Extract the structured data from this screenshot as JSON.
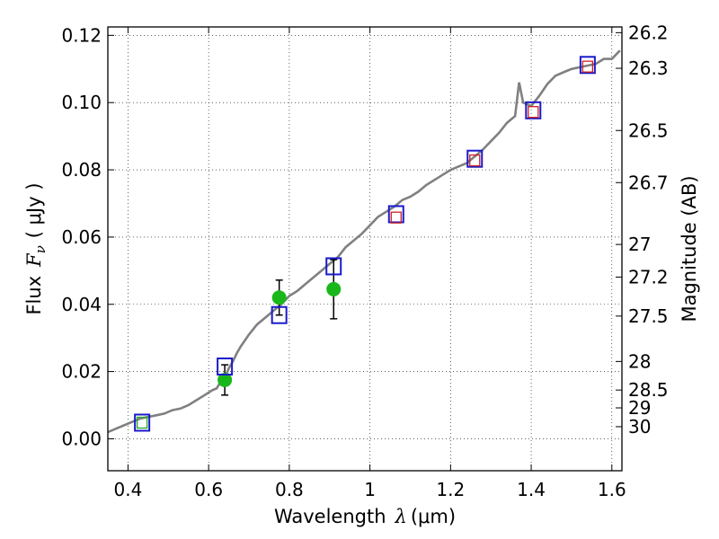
{
  "chart_data": {
    "type": "scatter",
    "xlabel": "Wavelength",
    "xlabel_symbol": "λ",
    "xlabel_unit": "(μm)",
    "ylabel": "Flux",
    "ylabel_symbol": "F",
    "ylabel_sub": "ν",
    "ylabel_unit": "( μJy )",
    "y2label": "Magnitude (AB)",
    "xlim": [
      0.35,
      1.625
    ],
    "ylim": [
      -0.0095,
      0.1225
    ],
    "grid": true,
    "x_ticks": [
      0.4,
      0.6,
      0.8,
      1.0,
      1.2,
      1.4,
      1.6
    ],
    "x_tick_labels": [
      "0.4",
      "0.6",
      "0.8",
      "1",
      "1.2",
      "1.4",
      "1.6"
    ],
    "y_ticks": [
      0.0,
      0.02,
      0.04,
      0.06,
      0.08,
      0.1,
      0.12
    ],
    "y_tick_labels": [
      "0.00",
      "0.02",
      "0.04",
      "0.06",
      "0.08",
      "0.10",
      "0.12"
    ],
    "y2_ticks": [
      {
        "label": "26.2",
        "flux": 0.1208
      },
      {
        "label": "26.3",
        "flux": 0.1102
      },
      {
        "label": "26.5",
        "flux": 0.0917
      },
      {
        "label": "26.7",
        "flux": 0.0762
      },
      {
        "label": "27",
        "flux": 0.0578
      },
      {
        "label": "27.2",
        "flux": 0.0481
      },
      {
        "label": "27.5",
        "flux": 0.0365
      },
      {
        "label": "28",
        "flux": 0.023
      },
      {
        "label": "28.5",
        "flux": 0.0145
      },
      {
        "label": "29",
        "flux": 0.0092
      },
      {
        "label": "30",
        "flux": 0.0036
      }
    ],
    "series": [
      {
        "kind": "line",
        "color": "#808080",
        "x": [
          0.35,
          0.37,
          0.39,
          0.41,
          0.43,
          0.45,
          0.47,
          0.49,
          0.51,
          0.53,
          0.55,
          0.57,
          0.59,
          0.61,
          0.62,
          0.63,
          0.64,
          0.65,
          0.66,
          0.67,
          0.68,
          0.7,
          0.72,
          0.74,
          0.76,
          0.78,
          0.8,
          0.82,
          0.84,
          0.86,
          0.88,
          0.9,
          0.92,
          0.94,
          0.96,
          0.98,
          1.0,
          1.02,
          1.04,
          1.06,
          1.08,
          1.1,
          1.12,
          1.14,
          1.16,
          1.18,
          1.2,
          1.22,
          1.24,
          1.26,
          1.28,
          1.3,
          1.32,
          1.34,
          1.36,
          1.37,
          1.38,
          1.4,
          1.42,
          1.44,
          1.46,
          1.48,
          1.5,
          1.52,
          1.54,
          1.56,
          1.58,
          1.6,
          1.62
        ],
        "y": [
          0.002,
          0.003,
          0.004,
          0.005,
          0.006,
          0.0065,
          0.007,
          0.0075,
          0.0085,
          0.009,
          0.01,
          0.0115,
          0.013,
          0.0145,
          0.015,
          0.017,
          0.018,
          0.021,
          0.023,
          0.0255,
          0.0275,
          0.031,
          0.034,
          0.036,
          0.038,
          0.04,
          0.0425,
          0.044,
          0.046,
          0.048,
          0.05,
          0.052,
          0.054,
          0.057,
          0.059,
          0.061,
          0.0635,
          0.066,
          0.0675,
          0.069,
          0.071,
          0.072,
          0.0735,
          0.0755,
          0.077,
          0.0785,
          0.08,
          0.081,
          0.082,
          0.084,
          0.086,
          0.0885,
          0.091,
          0.094,
          0.096,
          0.106,
          0.1,
          0.099,
          0.102,
          0.1055,
          0.108,
          0.109,
          0.11,
          0.1105,
          0.111,
          0.1115,
          0.113,
          0.113,
          0.1155
        ]
      },
      {
        "kind": "points",
        "marker": "circle",
        "color": "#1ab71a",
        "x": [
          0.64,
          0.775,
          0.91
        ],
        "y": [
          0.0175,
          0.042,
          0.0445
        ],
        "yerr": [
          0.0045,
          0.0052,
          0.0088
        ]
      },
      {
        "kind": "points",
        "marker": "square",
        "color": "#1a1acc",
        "x": [
          0.435,
          0.64,
          0.775,
          0.91,
          1.065,
          1.26,
          1.405,
          1.54
        ],
        "y": [
          0.0048,
          0.0215,
          0.0368,
          0.0513,
          0.0668,
          0.0833,
          0.0977,
          0.1112
        ]
      },
      {
        "kind": "points",
        "marker": "square-small",
        "color": "#cc2020",
        "x": [
          1.065,
          1.26,
          1.405,
          1.54
        ],
        "y": [
          0.0658,
          0.0828,
          0.0972,
          0.1107
        ]
      },
      {
        "kind": "points",
        "marker": "square-small",
        "color": "#22aa22",
        "x": [
          0.435
        ],
        "y": [
          0.0048
        ]
      }
    ]
  }
}
